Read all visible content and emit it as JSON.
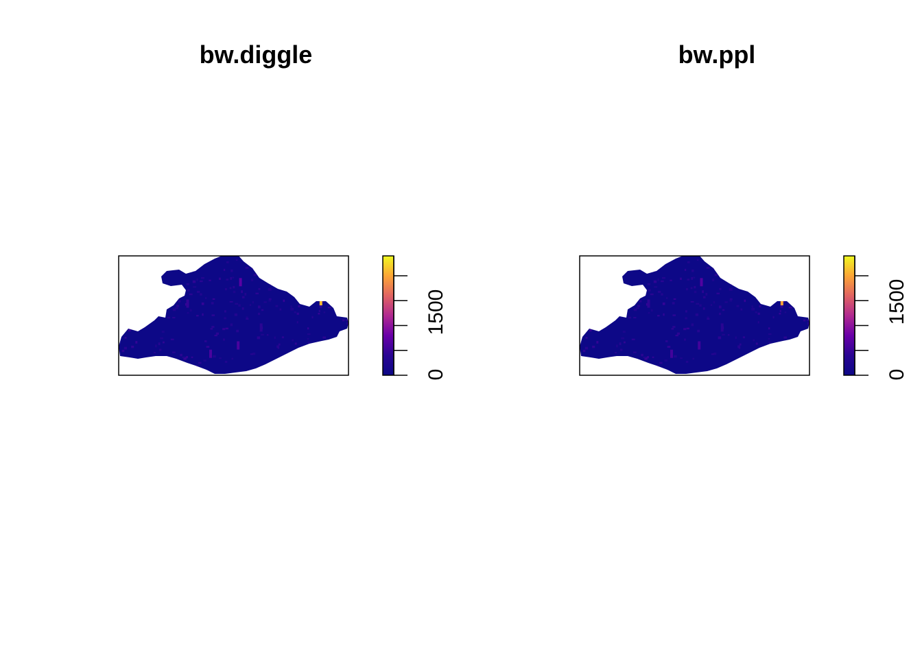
{
  "chart_data": [
    {
      "type": "heatmap",
      "title": "bw.diggle",
      "xlabel": "",
      "ylabel": "",
      "legend": {
        "position": "right",
        "orientation": "vertical",
        "range": [
          0,
          2400
        ],
        "ticks": [
          0,
          500,
          1000,
          1500,
          2000
        ],
        "tick_labels": [
          "0",
          "1500"
        ],
        "colormap": [
          "#0d0887",
          "#2a0593",
          "#6a00a8",
          "#b12a90",
          "#e16462",
          "#fca636",
          "#f0f921"
        ]
      },
      "grid": false,
      "axes_shown": false,
      "hotspots": [
        {
          "x": 0.88,
          "y": 0.38,
          "value": 2100
        },
        {
          "x": 0.53,
          "y": 0.22,
          "value": 700
        },
        {
          "x": 0.4,
          "y": 0.82,
          "value": 600
        },
        {
          "x": 0.52,
          "y": 0.75,
          "value": 600
        },
        {
          "x": 0.3,
          "y": 0.4,
          "value": 450
        },
        {
          "x": 0.62,
          "y": 0.6,
          "value": 400
        }
      ]
    },
    {
      "type": "heatmap",
      "title": "bw.ppl",
      "xlabel": "",
      "ylabel": "",
      "legend": {
        "position": "right",
        "orientation": "vertical",
        "range": [
          0,
          2400
        ],
        "ticks": [
          0,
          500,
          1000,
          1500,
          2000
        ],
        "tick_labels": [
          "0",
          "1500"
        ],
        "colormap": [
          "#0d0887",
          "#2a0593",
          "#6a00a8",
          "#b12a90",
          "#e16462",
          "#fca636",
          "#f0f921"
        ]
      },
      "grid": false,
      "axes_shown": false,
      "hotspots": [
        {
          "x": 0.88,
          "y": 0.38,
          "value": 2000
        },
        {
          "x": 0.53,
          "y": 0.22,
          "value": 650
        },
        {
          "x": 0.4,
          "y": 0.82,
          "value": 550
        },
        {
          "x": 0.52,
          "y": 0.75,
          "value": 550
        },
        {
          "x": 0.3,
          "y": 0.4,
          "value": 420
        },
        {
          "x": 0.62,
          "y": 0.6,
          "value": 380
        }
      ]
    }
  ]
}
